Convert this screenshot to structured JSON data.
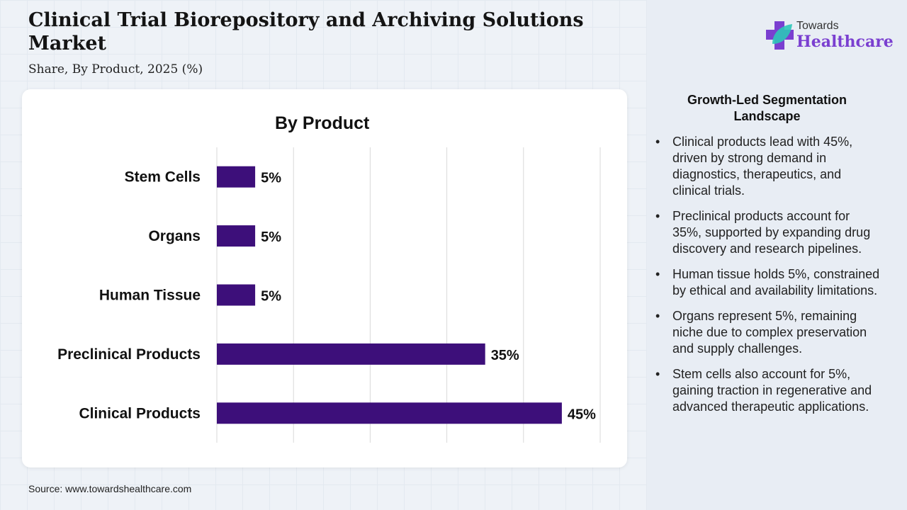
{
  "header": {
    "title": "Clinical Trial Biorepository and Archiving Solutions Market",
    "subtitle": "Share, By Product, 2025 (%)"
  },
  "logo": {
    "line1": "Towards",
    "line2": "Healthcare"
  },
  "source": "Source: www.towardshealthcare.com",
  "colors": {
    "bar": "#3d0f7a",
    "grid": "#d9d9d9",
    "accent": "#7a3fd0"
  },
  "chart_data": {
    "type": "bar",
    "orientation": "horizontal",
    "title": "By Product",
    "categories": [
      "Stem Cells",
      "Organs",
      "Human Tissue",
      "Preclinical Products",
      "Clinical Products"
    ],
    "values": [
      5,
      5,
      5,
      35,
      45
    ],
    "labels": [
      "5%",
      "5%",
      "5%",
      "35%",
      "45%"
    ],
    "xlim": [
      0,
      50
    ],
    "grid": true,
    "xlabel": "",
    "ylabel": ""
  },
  "side": {
    "heading": "Growth-Led Segmentation Landscape",
    "bullets": [
      "Clinical products lead with 45%, driven by strong demand in diagnostics, therapeutics, and clinical trials.",
      "Preclinical products account for 35%, supported by expanding drug discovery and research pipelines.",
      "Human tissue holds 5%, constrained by ethical and availability limitations.",
      "Organs represent 5%, remaining niche due to complex preservation and supply challenges.",
      "Stem cells also account for 5%, gaining traction in regenerative and advanced therapeutic applications."
    ]
  }
}
